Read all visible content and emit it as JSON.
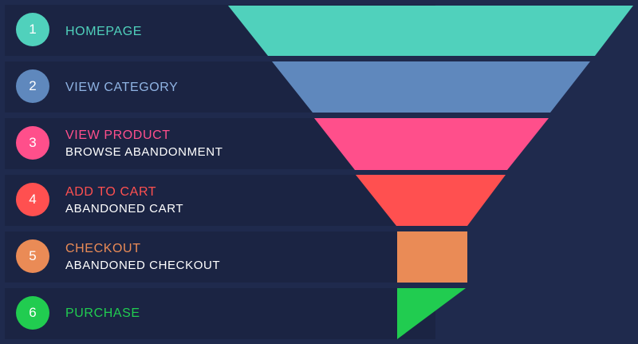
{
  "funnel": {
    "stages": [
      {
        "number": "1",
        "label": "HOMEPAGE",
        "sublabel": "",
        "color": "#50d1bc"
      },
      {
        "number": "2",
        "label": "VIEW CATEGORY",
        "sublabel": "",
        "color": "#5f88bd"
      },
      {
        "number": "3",
        "label": "VIEW PRODUCT",
        "sublabel": "BROWSE ABANDONMENT",
        "color": "#ff4f8b"
      },
      {
        "number": "4",
        "label": "ADD TO CART",
        "sublabel": "ABANDONED CART",
        "color": "#ff5050"
      },
      {
        "number": "5",
        "label": "CHECKOUT",
        "sublabel": "ABANDONED CHECKOUT",
        "color": "#ea8b56"
      },
      {
        "number": "6",
        "label": "PURCHASE",
        "sublabel": "",
        "color": "#21cc50"
      }
    ]
  }
}
